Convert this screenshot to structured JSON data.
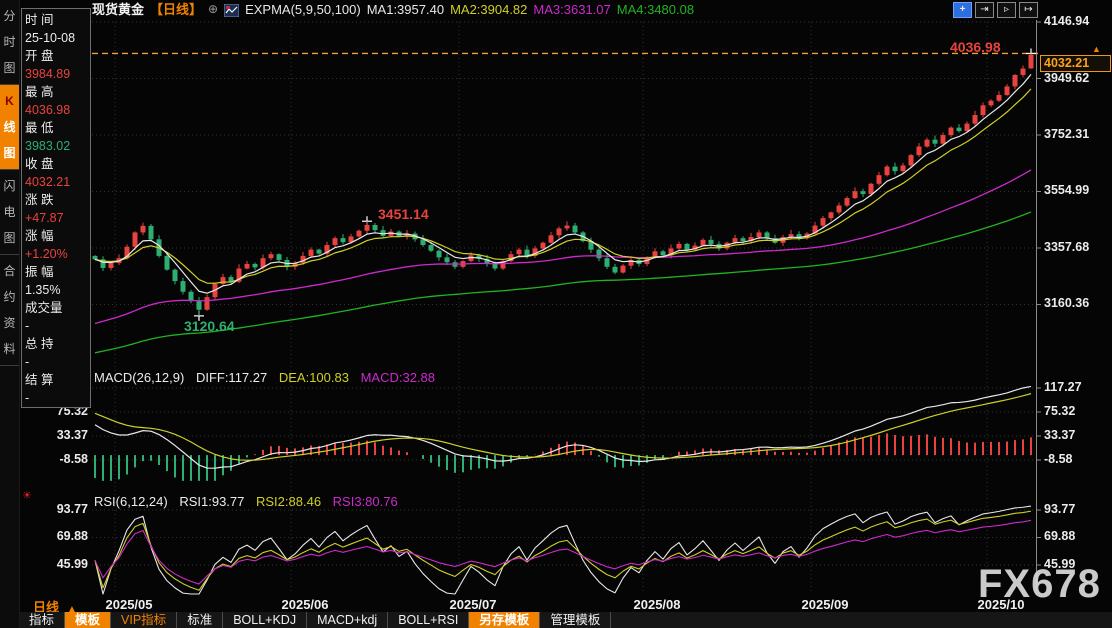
{
  "header": {
    "symbol": "现货黄金",
    "period_tag": "【日线】",
    "expma_label": "EXPMA(5,9,50,100)",
    "ma_labels": [
      {
        "text": "MA1:3957.40",
        "color_key": "ma1"
      },
      {
        "text": "MA2:3904.82",
        "color_key": "ma2"
      },
      {
        "text": "MA3:3631.07",
        "color_key": "ma3"
      },
      {
        "text": "MA4:3480.08",
        "color_key": "ma4"
      }
    ],
    "icons": {
      "circle_plus": "⊕",
      "crosshair": "+",
      "axis_in": "⇥",
      "playback": "▹",
      "shift": "↦"
    }
  },
  "side_tabs": [
    {
      "label": "分时图",
      "active": false
    },
    {
      "label": "K线图",
      "active": true
    },
    {
      "label": "闪电图",
      "active": false
    },
    {
      "label": "合约资料",
      "active": false
    }
  ],
  "quote_panel": {
    "rows": [
      {
        "label": "时 间",
        "value": "25-10-08",
        "color": "w"
      },
      {
        "label": "开 盘",
        "value": "3984.89",
        "color": "r"
      },
      {
        "label": "最 高",
        "value": "4036.98",
        "color": "r"
      },
      {
        "label": "最 低",
        "value": "3983.02",
        "color": "g"
      },
      {
        "label": "收 盘",
        "value": "4032.21",
        "color": "r"
      },
      {
        "label": "涨 跌",
        "value": "+47.87",
        "color": "r"
      },
      {
        "label": "涨 幅",
        "value": "+1.20%",
        "color": "r"
      },
      {
        "label": "振 幅",
        "value": "1.35%",
        "color": "w"
      },
      {
        "label": "成交量",
        "value": "-",
        "color": "w"
      },
      {
        "label": "总 持",
        "value": "-",
        "color": "w"
      },
      {
        "label": "结 算",
        "value": "-",
        "color": "w"
      }
    ]
  },
  "price_axis": {
    "labels": [
      "4146.94",
      "3949.62",
      "3752.31",
      "3554.99",
      "3357.68",
      "3160.36"
    ],
    "current": "4032.21",
    "current_arrow": "▲"
  },
  "macd_pane": {
    "title": "MACD(26,12,9)",
    "diff": "DIFF:117.27",
    "dea": "DEA:100.83",
    "macd": "MACD:32.88",
    "axis_labels": [
      "117.27",
      "75.32",
      "33.37",
      "-8.58"
    ]
  },
  "rsi_pane": {
    "title": "RSI(6,12,24)",
    "rsi1": "RSI1:93.77",
    "rsi2": "RSI2:88.46",
    "rsi3": "RSI3:80.76",
    "axis_labels": [
      "93.77",
      "69.88",
      "45.99"
    ]
  },
  "annotations": {
    "peak": {
      "text": "4036.98",
      "color": "r"
    },
    "june_high": {
      "text": "3451.14",
      "color": "r"
    },
    "may_low": {
      "text": "3120.64",
      "color": "g"
    }
  },
  "xaxis": {
    "period_label": "日线",
    "period_arrow": "▲"
  },
  "toolbar": [
    {
      "label": "指标",
      "style": "normal"
    },
    {
      "label": "模板",
      "style": "active"
    },
    {
      "label": "VIP指标",
      "style": "vip"
    },
    {
      "label": "标准",
      "style": "normal"
    },
    {
      "label": "BOLL+KDJ",
      "style": "normal"
    },
    {
      "label": "MACD+kdj",
      "style": "normal"
    },
    {
      "label": "BOLL+RSI",
      "style": "normal"
    },
    {
      "label": "另存模板",
      "style": "active"
    },
    {
      "label": "管理模板",
      "style": "normal"
    }
  ],
  "watermark": {
    "text": "FX678"
  },
  "colors": {
    "up_red": "#e8433e",
    "down_green": "#2fae71",
    "accent_orange": "#f08200",
    "ma1": "#e8e8e8",
    "ma2": "#cfcf28",
    "ma3": "#cc2acc",
    "ma4": "#21b321",
    "price_tag_orange": "#ffa11a",
    "dashed_high_line": "#f0a030"
  },
  "chart_data": {
    "type": "candlestick",
    "title": "现货黄金 日线",
    "ylim": [
      3160.36,
      4146.94
    ],
    "first_open": 3330,
    "closes": [
      3318,
      3288,
      3305,
      3322,
      3362,
      3412,
      3435,
      3388,
      3330,
      3282,
      3242,
      3205,
      3172,
      3142,
      3186,
      3232,
      3256,
      3240,
      3286,
      3302,
      3290,
      3322,
      3336,
      3316,
      3292,
      3306,
      3330,
      3352,
      3338,
      3368,
      3392,
      3378,
      3398,
      3418,
      3438,
      3420,
      3400,
      3415,
      3398,
      3408,
      3388,
      3368,
      3348,
      3325,
      3308,
      3292,
      3312,
      3332,
      3320,
      3302,
      3286,
      3312,
      3336,
      3352,
      3330,
      3356,
      3376,
      3402,
      3426,
      3436,
      3412,
      3382,
      3352,
      3322,
      3292,
      3272,
      3296,
      3316,
      3302,
      3326,
      3346,
      3332,
      3356,
      3372,
      3352,
      3366,
      3386,
      3372,
      3356,
      3376,
      3392,
      3382,
      3396,
      3412,
      3392,
      3376,
      3396,
      3406,
      3392,
      3408,
      3436,
      3462,
      3482,
      3506,
      3532,
      3556,
      3546,
      3582,
      3612,
      3642,
      3626,
      3646,
      3682,
      3712,
      3736,
      3722,
      3752,
      3778,
      3766,
      3792,
      3822,
      3856,
      3872,
      3892,
      3922,
      3962,
      3984.34,
      4032.21
    ],
    "overrides": {
      "13": {
        "low": 3120.64
      },
      "34": {
        "high": 3451.14
      },
      "117": {
        "open": 3984.89,
        "high": 4036.98,
        "low": 3983.02,
        "close": 4032.21
      }
    },
    "month_starts": [
      {
        "label": "2025/05",
        "index": 3
      },
      {
        "label": "2025/06",
        "index": 25
      },
      {
        "label": "2025/07",
        "index": 46
      },
      {
        "label": "2025/08",
        "index": 69
      },
      {
        "label": "2025/09",
        "index": 90
      },
      {
        "label": "2025/10",
        "index": 112
      }
    ],
    "ema_periods": [
      5,
      9,
      50,
      100
    ],
    "ema_seeds": {
      "ema50": 3085,
      "ema100": 2985
    },
    "macd_seeds": {
      "ema12": 3350,
      "ema26": 3290,
      "dea": 78
    },
    "rsi_periods": [
      6,
      12,
      24
    ],
    "key_values": {
      "last_close": 4032.21,
      "period_high": 4036.98,
      "june_high": 3451.14,
      "may_low": 3120.64
    }
  }
}
